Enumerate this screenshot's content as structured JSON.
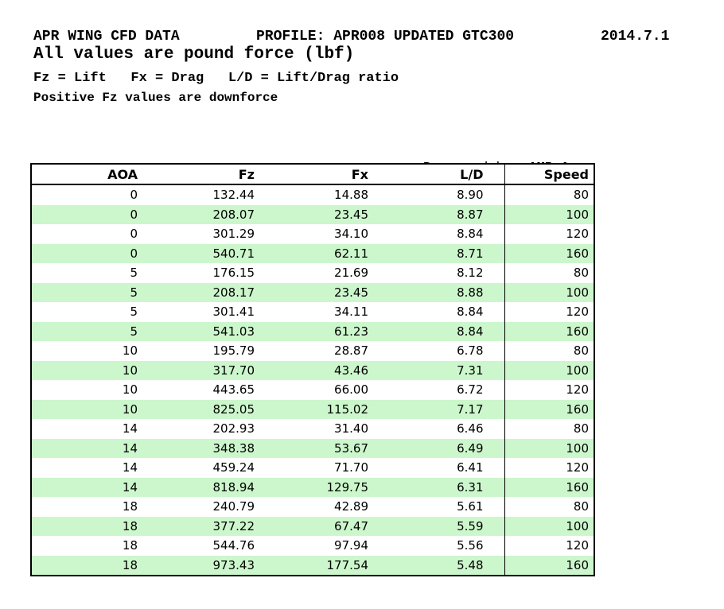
{
  "header": {
    "title": "APR WING CFD DATA",
    "profile": "PROFILE: APR008 UPDATED GTC300",
    "date": "2014.7.1",
    "subtitle": "All values are pound force (lbf)",
    "legend": "Fz = Lift   Fx = Drag   L/D = Lift/Drag ratio",
    "note": "Positive Fz values are downforce"
  },
  "prepared_by": {
    "label": "Prepared by: ",
    "value": "AMB Aero"
  },
  "table": {
    "columns": [
      "AOA",
      "Fz",
      "Fx",
      "L/D",
      "Speed"
    ],
    "rows": [
      [
        "0",
        "132.44",
        "14.88",
        "8.90",
        "80"
      ],
      [
        "0",
        "208.07",
        "23.45",
        "8.87",
        "100"
      ],
      [
        "0",
        "301.29",
        "34.10",
        "8.84",
        "120"
      ],
      [
        "0",
        "540.71",
        "62.11",
        "8.71",
        "160"
      ],
      [
        "5",
        "176.15",
        "21.69",
        "8.12",
        "80"
      ],
      [
        "5",
        "208.17",
        "23.45",
        "8.88",
        "100"
      ],
      [
        "5",
        "301.41",
        "34.11",
        "8.84",
        "120"
      ],
      [
        "5",
        "541.03",
        "61.23",
        "8.84",
        "160"
      ],
      [
        "10",
        "195.79",
        "28.87",
        "6.78",
        "80"
      ],
      [
        "10",
        "317.70",
        "43.46",
        "7.31",
        "100"
      ],
      [
        "10",
        "443.65",
        "66.00",
        "6.72",
        "120"
      ],
      [
        "10",
        "825.05",
        "115.02",
        "7.17",
        "160"
      ],
      [
        "14",
        "202.93",
        "31.40",
        "6.46",
        "80"
      ],
      [
        "14",
        "348.38",
        "53.67",
        "6.49",
        "100"
      ],
      [
        "14",
        "459.24",
        "71.70",
        "6.41",
        "120"
      ],
      [
        "14",
        "818.94",
        "129.75",
        "6.31",
        "160"
      ],
      [
        "18",
        "240.79",
        "42.89",
        "5.61",
        "80"
      ],
      [
        "18",
        "377.22",
        "67.47",
        "5.59",
        "100"
      ],
      [
        "18",
        "544.76",
        "97.94",
        "5.56",
        "120"
      ],
      [
        "18",
        "973.43",
        "177.54",
        "5.48",
        "160"
      ]
    ]
  },
  "colors": {
    "row_stripe": "#ccf7cc",
    "border": "#000000",
    "text": "#000000",
    "background": "#ffffff"
  }
}
